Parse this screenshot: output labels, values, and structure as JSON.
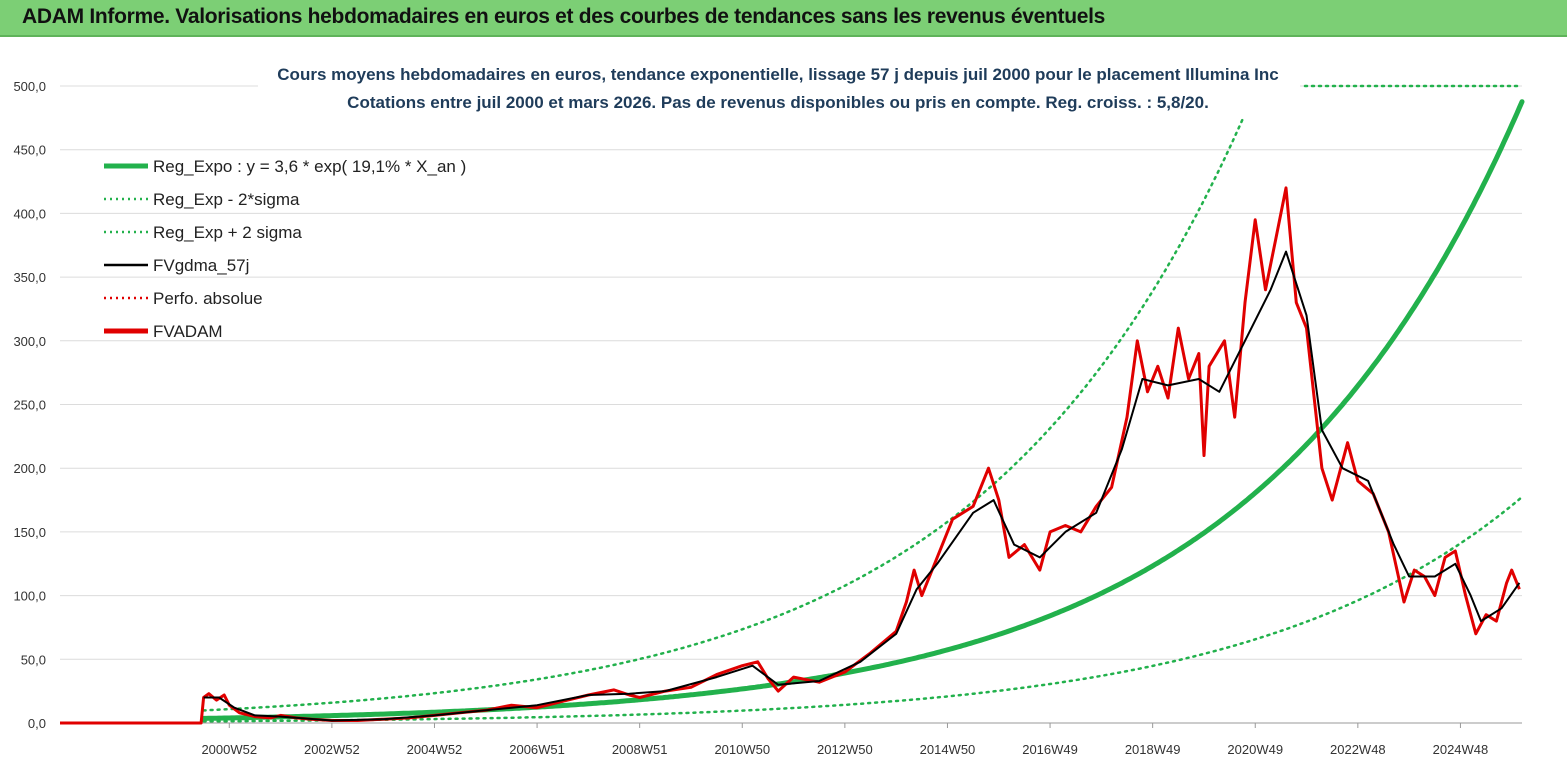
{
  "banner": {
    "title": "ADAM Informe. Valorisations hebdomadaires en euros et des courbes de tendances sans les revenus éventuels"
  },
  "chart_data": {
    "type": "line",
    "title_line1": "Cours moyens hebdomadaires en euros, tendance exponentielle, lissage 57 j depuis juil 2000 pour le placement Illumina Inc",
    "title_line2": "Cotations entre juil 2000 et mars 2026. Pas de revenus disponibles ou pris en compte. Reg. croiss. : 5,8/20.",
    "ylim": [
      0,
      500
    ],
    "xlim": [
      1997.7,
      2026.2
    ],
    "y_ticks": [
      "0,0",
      "50,0",
      "100,0",
      "150,0",
      "200,0",
      "250,0",
      "300,0",
      "350,0",
      "400,0",
      "450,0",
      "500,0"
    ],
    "y_tick_values": [
      0,
      50,
      100,
      150,
      200,
      250,
      300,
      350,
      400,
      450,
      500
    ],
    "x_ticks": [
      "2000W52",
      "2002W52",
      "2004W52",
      "2006W51",
      "2008W51",
      "2010W50",
      "2012W50",
      "2014W50",
      "2016W49",
      "2018W49",
      "2020W49",
      "2022W48",
      "2024W48"
    ],
    "x_tick_values": [
      2001.0,
      2003.0,
      2005.0,
      2007.0,
      2009.0,
      2011.0,
      2013.0,
      2015.0,
      2017.0,
      2019.0,
      2021.0,
      2023.0,
      2025.0
    ],
    "regression": {
      "a": 3.6,
      "rate": 0.191,
      "x0": 2000.5,
      "sigma_factor": 2.75,
      "x_start": 2000.5,
      "x_end": 2026.2
    },
    "legend": [
      {
        "label": "Reg_Expo : y = 3,6 * exp( 19,1% *  X_an )",
        "color": "#22b14c",
        "style": "solid-thick"
      },
      {
        "label": "Reg_Exp - 2*sigma",
        "color": "#22b14c",
        "style": "dotted"
      },
      {
        "label": "Reg_Exp + 2 sigma",
        "color": "#22b14c",
        "style": "dotted"
      },
      {
        "label": "FVgdma_57j",
        "color": "#000000",
        "style": "solid"
      },
      {
        "label": "Perfo. absolue",
        "color": "#e00000",
        "style": "dotted"
      },
      {
        "label": "FVADAM",
        "color": "#e00000",
        "style": "solid-thick"
      }
    ],
    "series": [
      {
        "name": "FVADAM",
        "color": "#e00000",
        "points": [
          [
            1997.7,
            0
          ],
          [
            2000.45,
            0
          ],
          [
            2000.5,
            20
          ],
          [
            2000.6,
            23
          ],
          [
            2000.75,
            18
          ],
          [
            2000.9,
            22
          ],
          [
            2001.0,
            14
          ],
          [
            2001.2,
            8
          ],
          [
            2001.5,
            5
          ],
          [
            2001.8,
            4
          ],
          [
            2002.0,
            6
          ],
          [
            2002.3,
            4
          ],
          [
            2002.6,
            3
          ],
          [
            2003.0,
            2
          ],
          [
            2003.5,
            2
          ],
          [
            2004.0,
            3
          ],
          [
            2004.5,
            4
          ],
          [
            2005.0,
            6
          ],
          [
            2005.5,
            8
          ],
          [
            2006.0,
            10
          ],
          [
            2006.5,
            14
          ],
          [
            2007.0,
            12
          ],
          [
            2007.5,
            17
          ],
          [
            2008.0,
            22
          ],
          [
            2008.5,
            26
          ],
          [
            2008.8,
            22
          ],
          [
            2009.0,
            20
          ],
          [
            2009.5,
            25
          ],
          [
            2010.0,
            28
          ],
          [
            2010.5,
            38
          ],
          [
            2011.0,
            45
          ],
          [
            2011.3,
            48
          ],
          [
            2011.5,
            35
          ],
          [
            2011.7,
            25
          ],
          [
            2012.0,
            36
          ],
          [
            2012.5,
            32
          ],
          [
            2013.0,
            40
          ],
          [
            2013.5,
            55
          ],
          [
            2014.0,
            72
          ],
          [
            2014.2,
            95
          ],
          [
            2014.35,
            120
          ],
          [
            2014.5,
            100
          ],
          [
            2014.8,
            130
          ],
          [
            2015.1,
            160
          ],
          [
            2015.5,
            170
          ],
          [
            2015.8,
            200
          ],
          [
            2016.0,
            175
          ],
          [
            2016.2,
            130
          ],
          [
            2016.5,
            140
          ],
          [
            2016.8,
            120
          ],
          [
            2017.0,
            150
          ],
          [
            2017.3,
            155
          ],
          [
            2017.6,
            150
          ],
          [
            2017.9,
            170
          ],
          [
            2018.2,
            185
          ],
          [
            2018.5,
            240
          ],
          [
            2018.7,
            300
          ],
          [
            2018.9,
            260
          ],
          [
            2019.1,
            280
          ],
          [
            2019.3,
            255
          ],
          [
            2019.5,
            310
          ],
          [
            2019.7,
            270
          ],
          [
            2019.9,
            290
          ],
          [
            2020.0,
            210
          ],
          [
            2020.1,
            280
          ],
          [
            2020.4,
            300
          ],
          [
            2020.6,
            240
          ],
          [
            2020.8,
            330
          ],
          [
            2021.0,
            395
          ],
          [
            2021.2,
            340
          ],
          [
            2021.4,
            380
          ],
          [
            2021.6,
            420
          ],
          [
            2021.8,
            330
          ],
          [
            2022.0,
            310
          ],
          [
            2022.3,
            200
          ],
          [
            2022.5,
            175
          ],
          [
            2022.8,
            220
          ],
          [
            2023.0,
            190
          ],
          [
            2023.3,
            180
          ],
          [
            2023.6,
            150
          ],
          [
            2023.9,
            95
          ],
          [
            2024.1,
            120
          ],
          [
            2024.3,
            115
          ],
          [
            2024.5,
            100
          ],
          [
            2024.7,
            130
          ],
          [
            2024.9,
            135
          ],
          [
            2025.1,
            100
          ],
          [
            2025.3,
            70
          ],
          [
            2025.5,
            85
          ],
          [
            2025.7,
            80
          ],
          [
            2025.9,
            110
          ],
          [
            2026.0,
            120
          ],
          [
            2026.15,
            105
          ]
        ]
      },
      {
        "name": "FVgdma_57j",
        "color": "#000000",
        "points": [
          [
            2000.5,
            20
          ],
          [
            2000.8,
            20
          ],
          [
            2001.1,
            12
          ],
          [
            2001.5,
            6
          ],
          [
            2002.0,
            5
          ],
          [
            2003.0,
            2
          ],
          [
            2004.0,
            3
          ],
          [
            2005.0,
            6
          ],
          [
            2006.0,
            10
          ],
          [
            2007.0,
            14
          ],
          [
            2008.0,
            22
          ],
          [
            2008.8,
            23
          ],
          [
            2009.5,
            25
          ],
          [
            2010.5,
            36
          ],
          [
            2011.2,
            45
          ],
          [
            2011.7,
            30
          ],
          [
            2012.5,
            33
          ],
          [
            2013.3,
            48
          ],
          [
            2014.0,
            70
          ],
          [
            2014.4,
            105
          ],
          [
            2014.8,
            125
          ],
          [
            2015.5,
            165
          ],
          [
            2015.9,
            175
          ],
          [
            2016.3,
            140
          ],
          [
            2016.8,
            130
          ],
          [
            2017.3,
            150
          ],
          [
            2017.9,
            165
          ],
          [
            2018.4,
            215
          ],
          [
            2018.8,
            270
          ],
          [
            2019.3,
            265
          ],
          [
            2019.9,
            270
          ],
          [
            2020.3,
            260
          ],
          [
            2020.8,
            300
          ],
          [
            2021.3,
            340
          ],
          [
            2021.6,
            370
          ],
          [
            2022.0,
            320
          ],
          [
            2022.3,
            230
          ],
          [
            2022.7,
            200
          ],
          [
            2023.2,
            190
          ],
          [
            2023.7,
            140
          ],
          [
            2024.0,
            115
          ],
          [
            2024.5,
            115
          ],
          [
            2024.9,
            125
          ],
          [
            2025.2,
            100
          ],
          [
            2025.4,
            80
          ],
          [
            2025.8,
            90
          ],
          [
            2026.15,
            110
          ]
        ]
      }
    ]
  }
}
